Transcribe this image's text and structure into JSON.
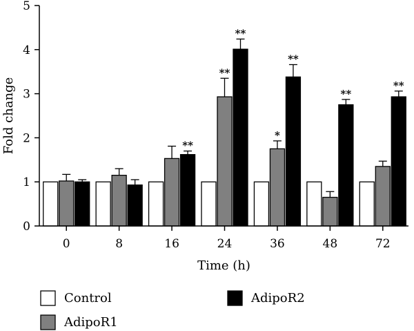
{
  "chart_data": {
    "type": "bar",
    "categories": [
      "0",
      "8",
      "16",
      "24",
      "36",
      "48",
      "72"
    ],
    "xlabel": "Time (h)",
    "ylabel": "Fold change",
    "ylim": [
      0,
      5
    ],
    "yticks": [
      "0",
      "1",
      "2",
      "3",
      "4",
      "5"
    ],
    "grid": false,
    "legend_position": "bottom",
    "series": [
      {
        "name": "Control",
        "color": "#ffffff",
        "values": [
          1.0,
          1.0,
          1.0,
          1.0,
          1.0,
          1.0,
          1.0
        ],
        "errors": [
          0,
          0,
          0,
          0,
          0,
          0,
          0
        ],
        "significance": [
          "",
          "",
          "",
          "",
          "",
          "",
          ""
        ]
      },
      {
        "name": "AdipoR1",
        "color": "#808080",
        "values": [
          1.02,
          1.15,
          1.53,
          2.93,
          1.75,
          0.65,
          1.35
        ],
        "errors": [
          0.15,
          0.15,
          0.28,
          0.42,
          0.18,
          0.13,
          0.12
        ],
        "significance": [
          "",
          "",
          "",
          "**",
          "*",
          "",
          ""
        ]
      },
      {
        "name": "AdipoR2",
        "color": "#000000",
        "values": [
          1.0,
          0.93,
          1.62,
          4.01,
          3.38,
          2.75,
          2.93
        ],
        "errors": [
          0.05,
          0.12,
          0.08,
          0.23,
          0.28,
          0.12,
          0.13
        ],
        "significance": [
          "",
          "",
          "**",
          "**",
          "**",
          "**",
          "**"
        ]
      }
    ]
  }
}
